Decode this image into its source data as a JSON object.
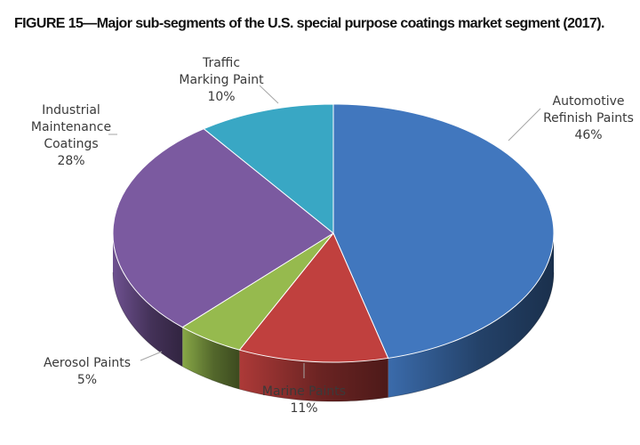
{
  "figure_title": "FIGURE 15—Major sub-segments of the U.S. special purpose coatings market segment (2017).",
  "chart_data": {
    "type": "pie",
    "style": "3d",
    "title": "",
    "slices": [
      {
        "label": [
          "Automotive",
          "Refinish Paints"
        ],
        "value": 46,
        "value_label": "46%",
        "color": "#4177BE"
      },
      {
        "label": [
          "Marine Paints"
        ],
        "value": 11,
        "value_label": "11%",
        "color": "#C0403E"
      },
      {
        "label": [
          "Aerosol Paints"
        ],
        "value": 5,
        "value_label": "5%",
        "color": "#96BA4E"
      },
      {
        "label": [
          "Industrial",
          "Maintenance",
          "Coatings"
        ],
        "value": 28,
        "value_label": "28%",
        "color": "#7B5AA0"
      },
      {
        "label": [
          "Traffic",
          "Marking Paint"
        ],
        "value": 10,
        "value_label": "10%",
        "color": "#39A7C4"
      }
    ]
  }
}
